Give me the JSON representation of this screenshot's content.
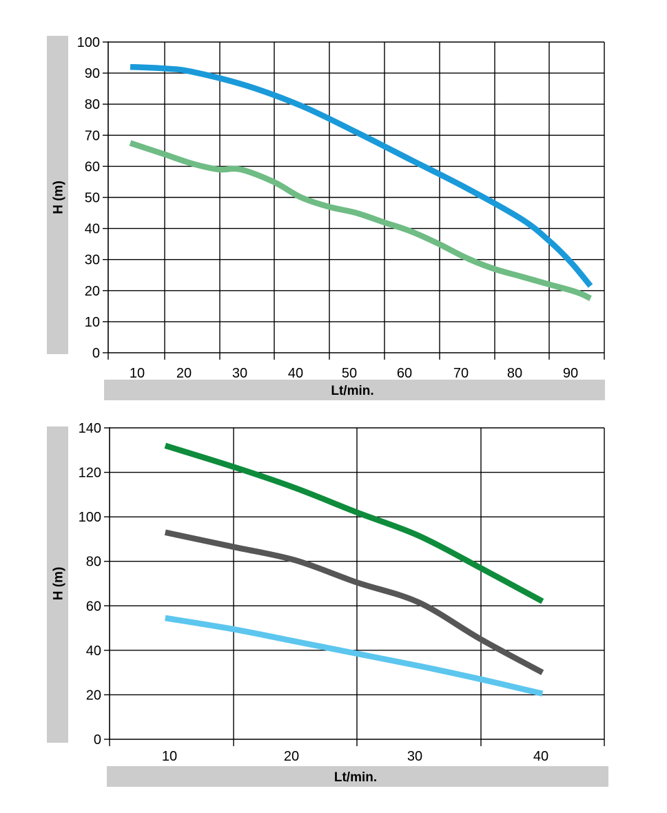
{
  "chart_data": [
    {
      "type": "line",
      "title": "",
      "xlabel": "Lt/min.",
      "ylabel": "H (m)",
      "xlim": [
        5,
        95
      ],
      "ylim": [
        0,
        100
      ],
      "x_ticks": [
        10,
        20,
        30,
        40,
        50,
        60,
        70,
        80,
        90
      ],
      "y_ticks": [
        0,
        10,
        20,
        30,
        40,
        50,
        60,
        70,
        80,
        90,
        100
      ],
      "grid": true,
      "legend": "none",
      "series": [
        {
          "color": "#1a9ad9",
          "x": [
            9,
            15,
            20,
            30,
            40,
            50,
            60,
            70,
            80,
            85,
            89,
            92.5
          ],
          "y": [
            92,
            91.5,
            90.5,
            86,
            79.5,
            71,
            62,
            53,
            43,
            36,
            29,
            21.5
          ]
        },
        {
          "color": "#6fbc85",
          "x": [
            9,
            15,
            20,
            25,
            29,
            35,
            40,
            45,
            50,
            55,
            60,
            65,
            70,
            75,
            80,
            85,
            90,
            92.5
          ],
          "y": [
            67.5,
            64,
            61,
            59,
            59,
            55,
            50,
            47,
            45,
            42,
            39,
            35,
            30.5,
            27,
            24.5,
            22,
            19.5,
            17.5
          ]
        }
      ]
    },
    {
      "type": "line",
      "title": "",
      "xlabel": "Lt/min.",
      "ylabel": "H (m)",
      "xlim": [
        5,
        45
      ],
      "ylim": [
        0,
        140
      ],
      "x_ticks": [
        10,
        20,
        30,
        40
      ],
      "y_ticks": [
        0,
        20,
        40,
        60,
        80,
        100,
        120,
        140
      ],
      "grid": true,
      "legend": "none",
      "series": [
        {
          "color": "#0e8c3c",
          "x": [
            9.5,
            15,
            20,
            25,
            30,
            35,
            40
          ],
          "y": [
            132,
            122.5,
            113,
            102,
            91.5,
            77,
            62
          ]
        },
        {
          "color": "#565656",
          "x": [
            9.5,
            15,
            20,
            25,
            30,
            35,
            40
          ],
          "y": [
            93,
            86.5,
            80.5,
            70.5,
            61.5,
            45,
            30
          ]
        },
        {
          "color": "#5cc6ee",
          "x": [
            9.5,
            15,
            20,
            25,
            30,
            35,
            40
          ],
          "y": [
            54.5,
            49.5,
            44,
            38.5,
            33,
            27,
            20.5
          ]
        }
      ]
    }
  ]
}
